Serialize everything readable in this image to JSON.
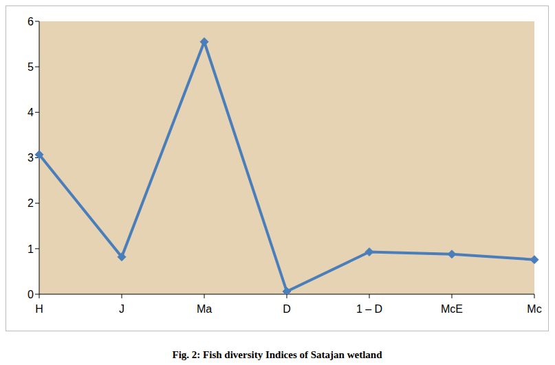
{
  "chart_data": {
    "type": "line",
    "title": "Fig. 2: Fish diversity Indices of Satajan wetland",
    "categories": [
      "H",
      "J",
      "Ma",
      "D",
      "1 – D",
      "McE",
      "Mc"
    ],
    "values": [
      3.07,
      0.82,
      5.55,
      0.06,
      0.93,
      0.88,
      0.76
    ],
    "color": "#4a7ebb",
    "marker": "diamond",
    "ylim": [
      0,
      6
    ],
    "yticks": [
      0,
      1,
      2,
      3,
      4,
      5,
      6
    ],
    "grid": false
  }
}
